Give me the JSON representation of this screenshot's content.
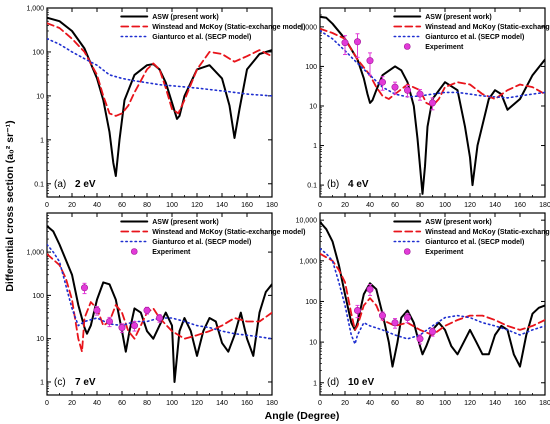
{
  "figure": {
    "ylabel": "Differential cross section (a₀² sr⁻¹)",
    "xlabel": "Angle (Degree)"
  },
  "colors": {
    "asw": "#000000",
    "winstead": "#e8141b",
    "gianturco": "#1f2fd0",
    "experiment": "#e23ad8"
  },
  "chart_data": [
    {
      "type": "line",
      "label": "(a)",
      "energy": "2 eV",
      "xlim": [
        0,
        180
      ],
      "ylim": [
        0.05,
        1000
      ],
      "yscale": "log",
      "xticks": [
        "0",
        "20",
        "40",
        "60",
        "80",
        "100",
        "120",
        "140",
        "160",
        "180"
      ],
      "yticks": [
        {
          "v": 0.1,
          "t": "0.1"
        },
        {
          "v": 1,
          "t": "1"
        },
        {
          "v": 10,
          "t": "10"
        },
        {
          "v": 100,
          "t": "100"
        },
        {
          "v": 1000,
          "t": "1,000"
        }
      ],
      "legend": "top-right",
      "series": [
        {
          "name": "ASW (present work)",
          "style": "solid",
          "key": "asw",
          "x": [
            0,
            10,
            20,
            30,
            40,
            45,
            50,
            53,
            55,
            58,
            62,
            70,
            80,
            85,
            90,
            95,
            100,
            104,
            106,
            110,
            120,
            130,
            140,
            146,
            150,
            154,
            160,
            170,
            180
          ],
          "y": [
            600,
            500,
            300,
            120,
            25,
            8,
            1.5,
            0.3,
            0.15,
            1,
            8,
            30,
            50,
            53,
            40,
            20,
            7,
            3,
            3.5,
            10,
            40,
            50,
            25,
            6,
            1.1,
            5,
            40,
            90,
            110
          ]
        },
        {
          "name": "Winstead and McKoy (Static-exchange model)",
          "style": "dashed",
          "key": "winstead",
          "x": [
            0,
            10,
            20,
            30,
            40,
            45,
            50,
            55,
            60,
            65,
            70,
            80,
            85,
            90,
            95,
            100,
            105,
            110,
            120,
            130,
            140,
            150,
            160,
            170,
            180
          ],
          "y": [
            450,
            350,
            200,
            100,
            30,
            10,
            4,
            3.5,
            4,
            6,
            12,
            40,
            55,
            40,
            15,
            5,
            4,
            8,
            40,
            100,
            90,
            60,
            80,
            110,
            80
          ]
        },
        {
          "name": "Gianturco et al. (SECP model)",
          "style": "dotted",
          "key": "gianturco",
          "x": [
            0,
            10,
            20,
            30,
            40,
            50,
            60,
            70,
            80,
            90,
            100,
            110,
            120,
            130,
            140,
            150,
            160,
            170,
            180
          ],
          "y": [
            200,
            150,
            100,
            70,
            50,
            30,
            25,
            22,
            20,
            18,
            17,
            16,
            15,
            14,
            13,
            12,
            11,
            10.5,
            10
          ]
        }
      ]
    },
    {
      "type": "line",
      "label": "(b)",
      "energy": "4 eV",
      "xlim": [
        0,
        180
      ],
      "ylim": [
        0.05,
        3000
      ],
      "yscale": "log",
      "xticks": [
        "0",
        "20",
        "40",
        "60",
        "80",
        "100",
        "120",
        "140",
        "160",
        "180"
      ],
      "yticks": [
        {
          "v": 0.1,
          "t": "0.1"
        },
        {
          "v": 1,
          "t": "1"
        },
        {
          "v": 10,
          "t": "10"
        },
        {
          "v": 100,
          "t": "100"
        },
        {
          "v": 1000,
          "t": "1,000"
        }
      ],
      "legend": "top-right",
      "series": [
        {
          "name": "ASW (present work)",
          "style": "solid",
          "key": "asw",
          "x": [
            0,
            5,
            10,
            20,
            30,
            35,
            38,
            40,
            42,
            45,
            50,
            60,
            65,
            70,
            75,
            78,
            80,
            82,
            84,
            86,
            90,
            100,
            110,
            116,
            120,
            122,
            126,
            135,
            140,
            145,
            150,
            160,
            170,
            180
          ],
          "y": [
            1800,
            1700,
            1200,
            500,
            150,
            50,
            20,
            12,
            14,
            25,
            60,
            100,
            80,
            40,
            10,
            1.5,
            0.3,
            0.06,
            0.3,
            3,
            15,
            40,
            25,
            3,
            0.5,
            0.1,
            1,
            15,
            25,
            20,
            8,
            15,
            60,
            150
          ]
        },
        {
          "name": "Winstead and McKoy (Static-exchange model)",
          "style": "dashed",
          "key": "winstead",
          "x": [
            0,
            10,
            20,
            30,
            40,
            45,
            50,
            55,
            60,
            70,
            80,
            85,
            90,
            95,
            100,
            110,
            120,
            130,
            140,
            150,
            160,
            170,
            180
          ],
          "y": [
            900,
            700,
            500,
            150,
            60,
            30,
            18,
            15,
            20,
            35,
            25,
            12,
            10,
            15,
            30,
            40,
            35,
            20,
            15,
            25,
            35,
            30,
            20
          ]
        },
        {
          "name": "Gianturco et al. (SECP model)",
          "style": "dotted",
          "key": "gianturco",
          "x": [
            0,
            10,
            20,
            30,
            40,
            50,
            60,
            70,
            80,
            90,
            100,
            110,
            120,
            130,
            140,
            150,
            160,
            170,
            180
          ],
          "y": [
            800,
            500,
            250,
            120,
            60,
            30,
            20,
            17,
            18,
            20,
            22,
            22,
            20,
            18,
            17,
            16,
            18,
            20,
            22
          ]
        },
        {
          "name": "Experiment",
          "style": "points",
          "key": "experiment",
          "x": [
            20,
            30,
            40,
            50,
            60,
            70,
            80,
            90
          ],
          "y": [
            400,
            420,
            140,
            40,
            30,
            25,
            20,
            12
          ],
          "err": [
            200,
            250,
            80,
            15,
            10,
            8,
            6,
            4
          ]
        }
      ]
    },
    {
      "type": "line",
      "label": "(c)",
      "energy": "7 eV",
      "xlim": [
        0,
        180
      ],
      "ylim": [
        0.5,
        8000
      ],
      "yscale": "log",
      "xticks": [
        "0",
        "20",
        "40",
        "60",
        "80",
        "100",
        "120",
        "140",
        "160",
        "180"
      ],
      "yticks": [
        {
          "v": 1,
          "t": "1"
        },
        {
          "v": 10,
          "t": "10"
        },
        {
          "v": 100,
          "t": "100"
        },
        {
          "v": 1000,
          "t": "1,000"
        }
      ],
      "legend": "top-right",
      "series": [
        {
          "name": "ASW (present work)",
          "style": "solid",
          "key": "asw",
          "x": [
            0,
            5,
            10,
            20,
            25,
            30,
            32,
            35,
            40,
            45,
            50,
            55,
            60,
            63,
            66,
            70,
            75,
            80,
            85,
            90,
            95,
            100,
            102,
            106,
            110,
            115,
            120,
            125,
            130,
            135,
            140,
            145,
            150,
            155,
            160,
            165,
            170,
            175,
            180
          ],
          "y": [
            4000,
            3000,
            1500,
            300,
            60,
            18,
            13,
            20,
            80,
            200,
            180,
            80,
            15,
            5,
            15,
            50,
            40,
            15,
            10,
            20,
            40,
            20,
            1,
            15,
            30,
            15,
            4,
            15,
            30,
            25,
            8,
            5,
            12,
            40,
            10,
            4,
            40,
            120,
            180
          ]
        },
        {
          "name": "Winstead and McKoy (Static-exchange model)",
          "style": "dashed",
          "key": "winstead",
          "x": [
            0,
            10,
            15,
            20,
            25,
            28,
            30,
            35,
            40,
            45,
            50,
            55,
            60,
            65,
            70,
            75,
            80,
            85,
            90,
            100,
            110,
            120,
            130,
            140,
            150,
            160,
            170,
            180
          ],
          "y": [
            900,
            500,
            250,
            80,
            10,
            5,
            30,
            70,
            50,
            20,
            25,
            60,
            40,
            15,
            10,
            20,
            40,
            50,
            30,
            15,
            10,
            12,
            15,
            20,
            30,
            25,
            25,
            40
          ]
        },
        {
          "name": "Gianturco et al. (SECP model)",
          "style": "dotted",
          "key": "gianturco",
          "x": [
            0,
            5,
            10,
            20,
            25,
            30,
            40,
            50,
            60,
            70,
            80,
            90,
            100,
            110,
            120,
            130,
            140,
            150,
            160,
            170,
            180
          ],
          "y": [
            1500,
            1000,
            600,
            50,
            20,
            25,
            30,
            22,
            20,
            25,
            25,
            30,
            30,
            25,
            20,
            18,
            15,
            13,
            12,
            11,
            10
          ]
        },
        {
          "name": "Experiment",
          "style": "points",
          "key": "experiment",
          "x": [
            30,
            40,
            50,
            60,
            70,
            80,
            90
          ],
          "y": [
            150,
            45,
            25,
            18,
            20,
            45,
            30
          ],
          "err": [
            40,
            10,
            6,
            4,
            5,
            8,
            6
          ]
        }
      ]
    },
    {
      "type": "line",
      "label": "(d)",
      "energy": "10 eV",
      "xlim": [
        0,
        180
      ],
      "ylim": [
        0.5,
        15000
      ],
      "yscale": "log",
      "xticks": [
        "0",
        "20",
        "40",
        "60",
        "80",
        "100",
        "120",
        "140",
        "160",
        "180"
      ],
      "yticks": [
        {
          "v": 1,
          "t": "1"
        },
        {
          "v": 10,
          "t": "10"
        },
        {
          "v": 100,
          "t": "100"
        },
        {
          "v": 1000,
          "t": "1,000"
        },
        {
          "v": 10000,
          "t": "10,000"
        }
      ],
      "legend": "top-right",
      "series": [
        {
          "name": "ASW (present work)",
          "style": "solid",
          "key": "asw",
          "x": [
            0,
            5,
            10,
            15,
            20,
            25,
            28,
            30,
            35,
            40,
            45,
            50,
            55,
            58,
            62,
            65,
            70,
            75,
            80,
            82,
            85,
            90,
            95,
            100,
            105,
            110,
            115,
            120,
            125,
            130,
            135,
            140,
            145,
            150,
            155,
            160,
            165,
            170,
            175,
            180
          ],
          "y": [
            9000,
            6000,
            3000,
            800,
            150,
            30,
            20,
            30,
            150,
            280,
            200,
            50,
            10,
            2.5,
            10,
            40,
            60,
            30,
            8,
            5,
            8,
            20,
            30,
            20,
            8,
            5,
            10,
            20,
            10,
            5,
            5,
            15,
            25,
            20,
            5,
            2.5,
            15,
            50,
            70,
            80
          ]
        },
        {
          "name": "Winstead and McKoy (Static-exchange model)",
          "style": "dashed",
          "key": "winstead",
          "x": [
            0,
            10,
            15,
            20,
            25,
            28,
            30,
            35,
            40,
            45,
            50,
            60,
            70,
            80,
            90,
            100,
            110,
            120,
            130,
            140,
            150,
            160,
            170,
            180
          ],
          "y": [
            1500,
            1000,
            600,
            300,
            50,
            20,
            25,
            80,
            120,
            80,
            35,
            25,
            30,
            20,
            15,
            25,
            35,
            45,
            45,
            35,
            25,
            20,
            25,
            35
          ]
        },
        {
          "name": "Gianturco et al. (SECP model)",
          "style": "dotted",
          "key": "gianturco",
          "x": [
            0,
            5,
            10,
            15,
            20,
            25,
            28,
            30,
            35,
            40,
            50,
            60,
            70,
            80,
            90,
            100,
            110,
            120,
            130,
            140,
            150,
            160,
            170,
            180
          ],
          "y": [
            2000,
            1500,
            1000,
            300,
            80,
            15,
            9,
            15,
            30,
            25,
            20,
            15,
            12,
            15,
            25,
            40,
            45,
            40,
            30,
            25,
            20,
            15,
            20,
            25
          ]
        },
        {
          "name": "Experiment",
          "style": "points",
          "key": "experiment",
          "x": [
            30,
            40,
            50,
            60,
            70,
            80,
            90
          ],
          "y": [
            60,
            200,
            45,
            30,
            40,
            12,
            18
          ],
          "err": [
            20,
            60,
            10,
            8,
            10,
            3,
            4
          ]
        }
      ]
    }
  ]
}
